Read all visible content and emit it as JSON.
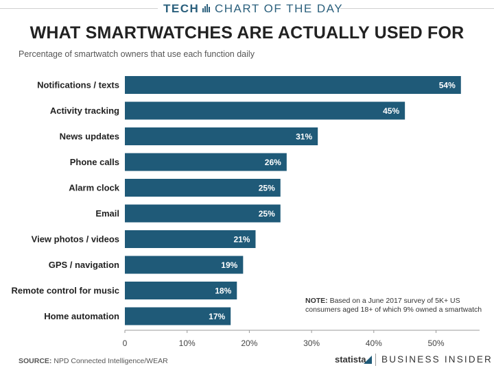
{
  "header": {
    "section": "TECH",
    "kicker": "CHART OF THE DAY",
    "title": "WHAT SMARTWATCHES ARE ACTUALLY USED FOR",
    "subtitle": "Percentage of smartwatch owners that use each function daily"
  },
  "chart_data": {
    "type": "bar",
    "orientation": "horizontal",
    "title": "WHAT SMARTWATCHES ARE ACTUALLY USED FOR",
    "subtitle": "Percentage of smartwatch owners that use each function daily",
    "xlabel": "",
    "ylabel": "",
    "categories": [
      "Notifications / texts",
      "Activity tracking",
      "News updates",
      "Phone calls",
      "Alarm clock",
      "Email",
      "View photos / videos",
      "GPS / navigation",
      "Remote control for music",
      "Home automation"
    ],
    "values": [
      54,
      45,
      31,
      26,
      25,
      25,
      21,
      19,
      18,
      17
    ],
    "value_labels": [
      "54%",
      "45%",
      "31%",
      "26%",
      "25%",
      "25%",
      "21%",
      "19%",
      "18%",
      "17%"
    ],
    "xlim": [
      0,
      57
    ],
    "x_ticks": [
      0,
      10,
      20,
      30,
      40,
      50
    ],
    "x_tick_labels": [
      "0",
      "10%",
      "20%",
      "30%",
      "40%",
      "50%"
    ],
    "grid": false
  },
  "note": {
    "label": "NOTE:",
    "text": " Based on a June 2017 survey of 5K+ US consumers aged 18+ of which 9% owned a smartwatch"
  },
  "source": {
    "label": "SOURCE:",
    "text": " NPD Connected Intelligence/WEAR"
  },
  "brands": {
    "statista": "statista",
    "publisher": "BUSINESS INSIDER"
  },
  "colors": {
    "bar": "#1f5a78",
    "bar_label": "#ffffff",
    "accent": "#2a5f7c",
    "axis": "#999999"
  }
}
